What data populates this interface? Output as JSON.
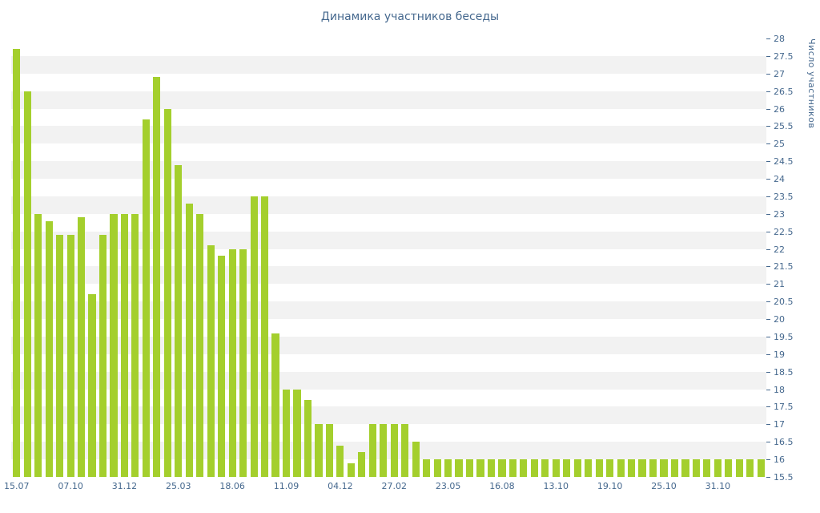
{
  "chart_data": {
    "type": "bar",
    "title": "Динамика участников беседы",
    "xlabel": "",
    "ylabel": "Число участников",
    "ylim": [
      15.5,
      28
    ],
    "ytick_step": 0.5,
    "grid": "alternating-horizontal-bands",
    "legend": "none",
    "x_tick_labels": [
      "15.07",
      "07.10",
      "31.12",
      "25.03",
      "18.06",
      "11.09",
      "04.12",
      "27.02",
      "23.05",
      "16.08",
      "13.10",
      "19.10",
      "25.10",
      "31.10"
    ],
    "x_tick_every": 5,
    "values": [
      27.7,
      26.5,
      23,
      22.8,
      22.4,
      22.4,
      22.9,
      20.7,
      22.4,
      23,
      23,
      23,
      25.7,
      26.9,
      26,
      24.4,
      23.3,
      23,
      22.1,
      21.8,
      22,
      22,
      23.5,
      23.5,
      19.6,
      18,
      18,
      17.7,
      17,
      17,
      16.4,
      15.9,
      16.2,
      17,
      17,
      17,
      17,
      16.5,
      16,
      16,
      16,
      16,
      16,
      16,
      16,
      16,
      16,
      16,
      16,
      16,
      16,
      16,
      16,
      16,
      16,
      16,
      16,
      16,
      16,
      16,
      16,
      16,
      16,
      16,
      16,
      16,
      16,
      16,
      16,
      16
    ],
    "bar_color": "#a4cf2d",
    "band_color": "#f2f2f2",
    "title_color": "#45688e",
    "text_color": "#45688e",
    "tick_color": "#45688e"
  }
}
